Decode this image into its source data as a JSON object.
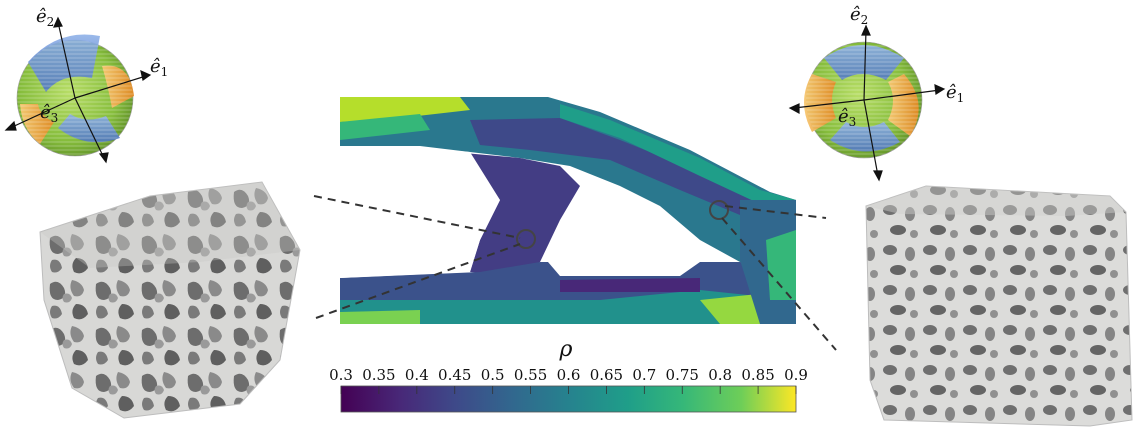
{
  "colorbar": {
    "symbol": "ρ",
    "min": 0.3,
    "max": 0.9,
    "ticks": [
      "0.3",
      "0.35",
      "0.4",
      "0.45",
      "0.5",
      "0.55",
      "0.6",
      "0.65",
      "0.7",
      "0.75",
      "0.8",
      "0.85",
      "0.9"
    ],
    "colormap": "viridis"
  },
  "left_orientation": {
    "labels": {
      "e1": "ê",
      "e1_sub": "1",
      "e2": "ê",
      "e2_sub": "2",
      "e3": "ê",
      "e3_sub": "3"
    }
  },
  "right_orientation": {
    "labels": {
      "e1": "ê",
      "e1_sub": "1",
      "e2": "ê",
      "e2_sub": "2",
      "e3": "ê",
      "e3_sub": "3"
    }
  },
  "colors": {
    "viridis_low": "#440154",
    "viridis_mid": "#21918c",
    "viridis_high": "#fde725",
    "petal_blue": "#6f96d6",
    "petal_orange": "#f0a040",
    "sphere_green": "#8cc63f",
    "foam": "#d9d9d9"
  }
}
